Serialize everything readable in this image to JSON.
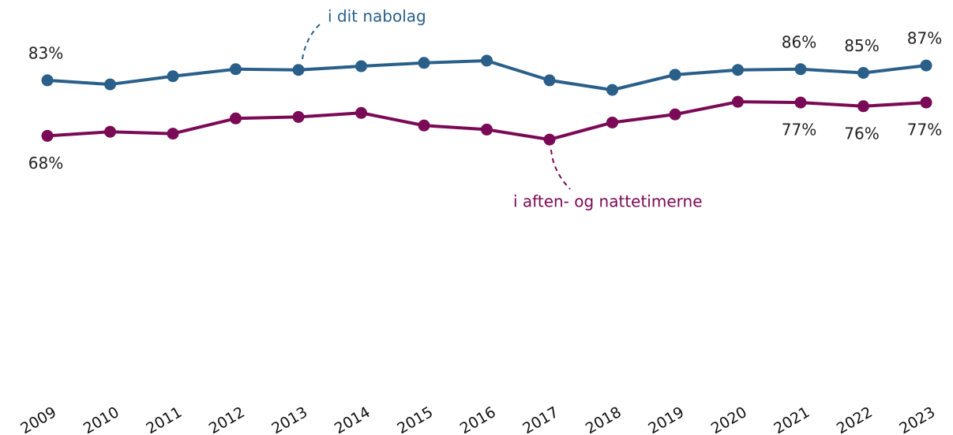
{
  "chart_data": {
    "type": "line",
    "categories": [
      "2009",
      "2010",
      "2011",
      "2012",
      "2013",
      "2014",
      "2015",
      "2016",
      "2017",
      "2018",
      "2019",
      "2020",
      "2021",
      "2022",
      "2023"
    ],
    "series": [
      {
        "name": "i dit nabolag",
        "color": "#2a5f8a",
        "values": [
          83,
          81.9,
          84.1,
          86,
          85.8,
          86.8,
          87.7,
          88.3,
          83,
          80.4,
          84.5,
          85.8,
          86,
          85,
          87
        ],
        "value_labels": [
          "83%",
          null,
          null,
          null,
          null,
          null,
          null,
          null,
          null,
          null,
          null,
          null,
          "86%",
          "85%",
          "87%"
        ]
      },
      {
        "name": "i aften- og nattetimerne",
        "color": "#7a0a55",
        "values": [
          68,
          69.1,
          68.6,
          72.7,
          73.1,
          74.2,
          70.8,
          69.7,
          67,
          71.6,
          73.8,
          77.2,
          77,
          76,
          77
        ],
        "value_labels": [
          "68%",
          null,
          null,
          null,
          null,
          null,
          null,
          null,
          null,
          null,
          null,
          null,
          "77%",
          "76%",
          "77%"
        ]
      }
    ],
    "ylim": [
      0,
      100
    ]
  }
}
